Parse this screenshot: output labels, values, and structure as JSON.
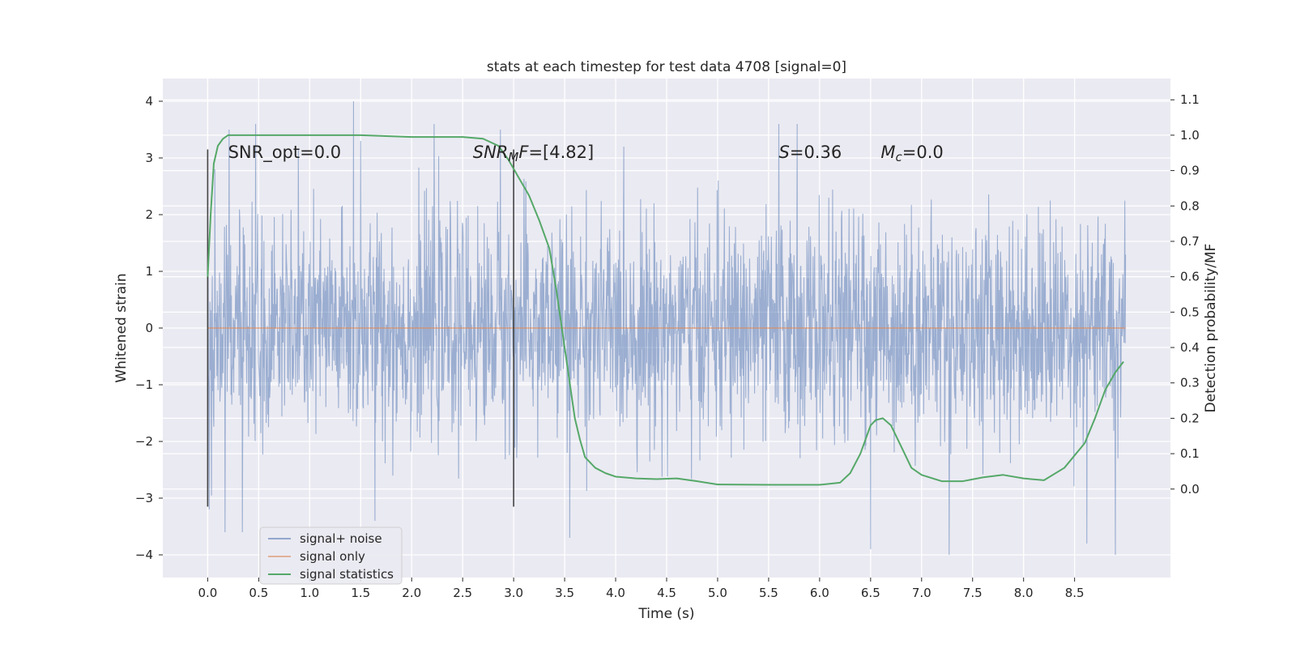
{
  "chart_data": {
    "type": "line",
    "title": "stats at each timestep for test data 4708 [signal=0]",
    "xlabel": "Time (s)",
    "ylabel": "Whitened strain",
    "y2label": "Detection probability/MF",
    "xlim": [
      -0.44,
      9.44
    ],
    "ylim": [
      -4.4,
      4.4
    ],
    "y2lim": [
      -0.25,
      1.16
    ],
    "x_ticks": [
      "0.0",
      "0.5",
      "1.0",
      "1.5",
      "2.0",
      "2.5",
      "3.0",
      "3.5",
      "4.0",
      "4.5",
      "5.0",
      "5.5",
      "6.0",
      "6.5",
      "7.0",
      "7.5",
      "8.0",
      "8.5"
    ],
    "y_ticks": [
      "4",
      "3",
      "2",
      "1",
      "0",
      "−1",
      "−2",
      "−3",
      "−4"
    ],
    "y2_ticks": [
      "1.1",
      "1.0",
      "0.9",
      "0.8",
      "0.7",
      "0.6",
      "0.5",
      "0.4",
      "0.3",
      "0.2",
      "0.1",
      "0.0"
    ],
    "grid": true,
    "legend_position": "lower-left",
    "series": [
      {
        "name": "signal+ noise",
        "color": "#4c72b0",
        "axis": "left",
        "x_range": [
          0.0,
          9.0
        ],
        "envelope_typical": 1.3,
        "envelope_peak": 4.0,
        "peaks": [
          {
            "x": 0.07,
            "y": 2.8
          },
          {
            "x": 0.21,
            "y": 3.5
          },
          {
            "x": 0.47,
            "y": 3.6
          },
          {
            "x": 1.43,
            "y": 4.0
          },
          {
            "x": 1.5,
            "y": 3.3
          },
          {
            "x": 2.22,
            "y": 3.6
          },
          {
            "x": 2.87,
            "y": 3.5
          },
          {
            "x": 5.6,
            "y": 3.6
          },
          {
            "x": 5.78,
            "y": 3.6
          },
          {
            "x": 6.5,
            "y": 3.6
          },
          {
            "x": 8.62,
            "y": 4.0
          },
          {
            "x": 0.17,
            "y": -3.6
          },
          {
            "x": 0.34,
            "y": -3.6
          },
          {
            "x": 1.64,
            "y": -3.4
          },
          {
            "x": 3.55,
            "y": -3.7
          },
          {
            "x": 6.5,
            "y": -3.9
          },
          {
            "x": 7.27,
            "y": -4.0
          },
          {
            "x": 8.62,
            "y": -3.8
          },
          {
            "x": 8.9,
            "y": -4.0
          }
        ]
      },
      {
        "name": "signal only",
        "color": "#dd8452",
        "axis": "left",
        "x": [
          0.0,
          9.0
        ],
        "y": [
          0.0,
          0.0
        ]
      },
      {
        "name": "signal statistics",
        "color": "#55a868",
        "axis": "right",
        "x": [
          0.0,
          0.03,
          0.06,
          0.1,
          0.15,
          0.2,
          0.3,
          0.5,
          1.0,
          1.5,
          2.0,
          2.5,
          2.7,
          2.85,
          2.95,
          3.05,
          3.15,
          3.25,
          3.35,
          3.42,
          3.5,
          3.55,
          3.6,
          3.65,
          3.7,
          3.8,
          3.9,
          4.0,
          4.2,
          4.4,
          4.6,
          4.8,
          5.0,
          5.5,
          6.0,
          6.2,
          6.3,
          6.4,
          6.5,
          6.55,
          6.62,
          6.7,
          6.8,
          6.9,
          7.0,
          7.2,
          7.4,
          7.6,
          7.8,
          8.0,
          8.2,
          8.4,
          8.6,
          8.7,
          8.8,
          8.9,
          8.98
        ],
        "y": [
          0.6,
          0.78,
          0.92,
          0.97,
          0.99,
          1.0,
          1.0,
          1.0,
          1.0,
          1.0,
          0.995,
          0.995,
          0.99,
          0.97,
          0.93,
          0.88,
          0.83,
          0.76,
          0.68,
          0.56,
          0.4,
          0.3,
          0.2,
          0.14,
          0.09,
          0.06,
          0.045,
          0.035,
          0.03,
          0.028,
          0.03,
          0.022,
          0.013,
          0.012,
          0.012,
          0.018,
          0.045,
          0.1,
          0.18,
          0.195,
          0.2,
          0.18,
          0.12,
          0.06,
          0.04,
          0.022,
          0.022,
          0.033,
          0.04,
          0.03,
          0.025,
          0.06,
          0.13,
          0.2,
          0.28,
          0.33,
          0.36
        ]
      }
    ],
    "markers": [
      {
        "name": "vertical-marker-start",
        "x": 0.0,
        "y_range": [
          -3.15,
          3.15
        ],
        "color": "#444444"
      },
      {
        "name": "vertical-marker-end",
        "x": 3.0,
        "y_range": [
          -3.15,
          3.15
        ],
        "color": "#444444"
      }
    ],
    "annotations": [
      {
        "name": "snr-opt",
        "x": 0.2,
        "y": 3.1,
        "parts": [
          {
            "text": "SNR_opt=0.0"
          }
        ]
      },
      {
        "name": "snr-mf",
        "x": 2.6,
        "y": 3.1,
        "parts": [
          {
            "text": "SNR",
            "style": "italic"
          },
          {
            "text": "M",
            "style": "italic-sub"
          },
          {
            "text": "F",
            "style": "italic"
          },
          {
            "text": "=[4.82]"
          }
        ]
      },
      {
        "name": "s-value",
        "x": 5.6,
        "y": 3.1,
        "parts": [
          {
            "text": "S",
            "style": "italic"
          },
          {
            "text": "=0.36"
          }
        ]
      },
      {
        "name": "mc-value",
        "x": 6.6,
        "y": 3.1,
        "parts": [
          {
            "text": "M",
            "style": "italic"
          },
          {
            "text": "c",
            "style": "italic-sub"
          },
          {
            "text": "=0.0"
          }
        ]
      }
    ]
  }
}
